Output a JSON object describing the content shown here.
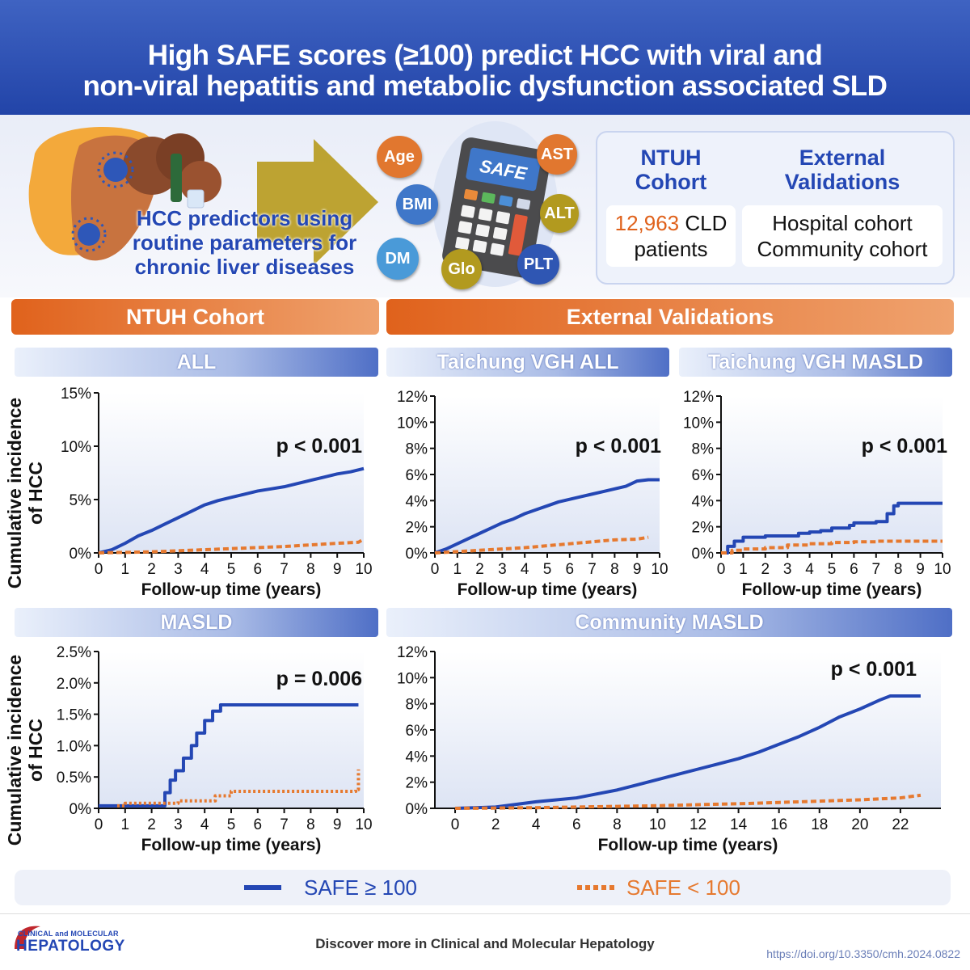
{
  "header": {
    "title_line1": "High SAFE scores (≥100) predict HCC with viral and",
    "title_line2": "non-viral hepatitis and metabolic dysfunction associated SLD"
  },
  "intro": {
    "predictor_text_line1": "HCC predictors using",
    "predictor_text_line2": "routine parameters for",
    "predictor_text_line3": "chronic liver diseases",
    "calculator_label": "SAFE",
    "parameters": [
      "Age",
      "AST",
      "BMI",
      "ALT",
      "DM",
      "Glo",
      "PLT"
    ]
  },
  "cohort_box": {
    "ntuh_line1": "NTUH",
    "ntuh_line2": "Cohort",
    "ntuh_count": "12,963",
    "ntuh_count_suffix": " CLD",
    "ntuh_count_line2": "patients",
    "ext_line1": "External",
    "ext_line2": "Validations",
    "ext_item1": "Hospital cohort",
    "ext_item2": "Community cohort"
  },
  "section_headers": {
    "ntuh": "NTUH Cohort",
    "external": "External Validations"
  },
  "common": {
    "y_axis_label_line1": "Cumulative incidence",
    "y_axis_label_line2": "of HCC"
  },
  "colors": {
    "high": "#2447b4",
    "low": "#e6792f",
    "accent_orange": "#e0621c"
  },
  "chart_data": [
    {
      "id": "ntuh-all",
      "type": "line",
      "title": "ALL",
      "xlabel": "Follow-up time (years)",
      "ylabel": "Cumulative incidence of HCC",
      "xlim": [
        0,
        10
      ],
      "ylim": [
        0,
        15
      ],
      "xticks": [
        0,
        1,
        2,
        3,
        4,
        5,
        6,
        7,
        8,
        9,
        10
      ],
      "yticks": [
        0,
        5,
        10,
        15
      ],
      "ytick_labels": [
        "0%",
        "5%",
        "10%",
        "15%"
      ],
      "pvalue": "p < 0.001",
      "series": [
        {
          "name": "SAFE ≥ 100",
          "style": "solid",
          "x": [
            0,
            0.5,
            1,
            1.5,
            2,
            2.5,
            3,
            3.5,
            4,
            4.5,
            5,
            5.5,
            6,
            6.5,
            7,
            7.5,
            8,
            8.5,
            9,
            9.5,
            10
          ],
          "y": [
            0,
            0.3,
            0.9,
            1.6,
            2.1,
            2.7,
            3.3,
            3.9,
            4.5,
            4.9,
            5.2,
            5.5,
            5.8,
            6.0,
            6.2,
            6.5,
            6.8,
            7.1,
            7.4,
            7.6,
            7.9
          ]
        },
        {
          "name": "SAFE < 100",
          "style": "dashed",
          "x": [
            0,
            1,
            2,
            3,
            4,
            5,
            6,
            7,
            8,
            9,
            9.8,
            10
          ],
          "y": [
            0,
            0.05,
            0.1,
            0.2,
            0.3,
            0.4,
            0.5,
            0.6,
            0.75,
            0.9,
            1.0,
            1.3
          ]
        }
      ]
    },
    {
      "id": "tvgh-all",
      "type": "line",
      "title": "Taichung VGH ALL",
      "xlabel": "Follow-up time (years)",
      "xlim": [
        0,
        10
      ],
      "ylim": [
        0,
        12
      ],
      "xticks": [
        0,
        1,
        2,
        3,
        4,
        5,
        6,
        7,
        8,
        9,
        10
      ],
      "yticks": [
        0,
        2,
        4,
        6,
        8,
        10,
        12
      ],
      "ytick_labels": [
        "0%",
        "2%",
        "4%",
        "6%",
        "8%",
        "10%",
        "12%"
      ],
      "pvalue": "p < 0.001",
      "series": [
        {
          "name": "SAFE ≥ 100",
          "style": "solid",
          "x": [
            0,
            0.5,
            1,
            1.5,
            2,
            2.5,
            3,
            3.5,
            4,
            4.5,
            5,
            5.5,
            6,
            6.5,
            7,
            7.5,
            8,
            8.5,
            9,
            9.5,
            10
          ],
          "y": [
            0,
            0.3,
            0.7,
            1.1,
            1.5,
            1.9,
            2.3,
            2.6,
            3.0,
            3.3,
            3.6,
            3.9,
            4.1,
            4.3,
            4.5,
            4.7,
            4.9,
            5.1,
            5.5,
            5.6,
            5.6
          ]
        },
        {
          "name": "SAFE < 100",
          "style": "dashed",
          "x": [
            0,
            1,
            2,
            3,
            4,
            5,
            6,
            7,
            8,
            9,
            9.5
          ],
          "y": [
            0,
            0.1,
            0.2,
            0.3,
            0.4,
            0.55,
            0.7,
            0.85,
            1.0,
            1.05,
            1.2
          ]
        }
      ]
    },
    {
      "id": "tvgh-masld",
      "type": "line",
      "title": "Taichung VGH MASLD",
      "xlabel": "Follow-up time (years)",
      "xlim": [
        0,
        10
      ],
      "ylim": [
        0,
        12
      ],
      "xticks": [
        0,
        1,
        2,
        3,
        4,
        5,
        6,
        7,
        8,
        9,
        10
      ],
      "yticks": [
        0,
        2,
        4,
        6,
        8,
        10,
        12
      ],
      "ytick_labels": [
        "0%",
        "2%",
        "4%",
        "6%",
        "8%",
        "10%",
        "12%"
      ],
      "pvalue": "p < 0.001",
      "series": [
        {
          "name": "SAFE ≥ 100",
          "style": "solid",
          "x": [
            0,
            0.3,
            0.6,
            1,
            2,
            3,
            3.5,
            4,
            4.5,
            5,
            5.8,
            6,
            6.5,
            7,
            7.5,
            7.8,
            8,
            9,
            10
          ],
          "y": [
            0,
            0.5,
            0.9,
            1.2,
            1.3,
            1.3,
            1.5,
            1.6,
            1.7,
            1.9,
            2.1,
            2.3,
            2.3,
            2.4,
            3.0,
            3.6,
            3.8,
            3.8,
            3.8
          ]
        },
        {
          "name": "SAFE < 100",
          "style": "dashed",
          "x": [
            0,
            0.5,
            1,
            2,
            3,
            4,
            5,
            6,
            7,
            8,
            9,
            10
          ],
          "y": [
            0,
            0.2,
            0.3,
            0.4,
            0.6,
            0.7,
            0.8,
            0.85,
            0.9,
            0.9,
            0.9,
            0.9
          ]
        }
      ]
    },
    {
      "id": "ntuh-masld",
      "type": "line",
      "title": "MASLD",
      "xlabel": "Follow-up time (years)",
      "ylabel": "Cumulative incidence of HCC",
      "xlim": [
        0,
        10
      ],
      "ylim": [
        0,
        2.5
      ],
      "xticks": [
        0,
        1,
        2,
        3,
        4,
        5,
        6,
        7,
        8,
        9,
        10
      ],
      "yticks": [
        0,
        0.5,
        1.0,
        1.5,
        2.0,
        2.5
      ],
      "ytick_labels": [
        "0%",
        "0.5%",
        "1.0%",
        "1.5%",
        "2.0%",
        "2.5%"
      ],
      "pvalue": "p = 0.006",
      "series": [
        {
          "name": "SAFE ≥ 100",
          "style": "solid",
          "x": [
            0,
            2.4,
            2.5,
            2.7,
            2.9,
            3.2,
            3.5,
            3.7,
            4.0,
            4.3,
            4.6,
            9.8
          ],
          "y": [
            0.04,
            0.04,
            0.25,
            0.45,
            0.6,
            0.8,
            1.0,
            1.2,
            1.4,
            1.55,
            1.65,
            1.65
          ]
        },
        {
          "name": "SAFE < 100",
          "style": "dotted",
          "x": [
            0.7,
            1,
            2.5,
            3,
            4,
            4.4,
            4.8,
            5,
            6,
            7,
            8,
            9,
            9.7,
            9.8,
            9.8
          ],
          "y": [
            0.04,
            0.08,
            0.08,
            0.12,
            0.12,
            0.2,
            0.2,
            0.27,
            0.27,
            0.27,
            0.27,
            0.27,
            0.3,
            0.4,
            0.62
          ]
        }
      ]
    },
    {
      "id": "community-masld",
      "type": "line",
      "title": "Community MASLD",
      "xlabel": "Follow-up time (years)",
      "xlim": [
        -1,
        24
      ],
      "ylim": [
        0,
        12
      ],
      "xticks": [
        0,
        2,
        4,
        6,
        8,
        10,
        12,
        14,
        16,
        18,
        20,
        22
      ],
      "yticks": [
        0,
        2,
        4,
        6,
        8,
        10,
        12
      ],
      "ytick_labels": [
        "0%",
        "2%",
        "4%",
        "6%",
        "8%",
        "10%",
        "12%"
      ],
      "pvalue": "p < 0.001",
      "series": [
        {
          "name": "SAFE ≥ 100",
          "style": "solid",
          "x": [
            0,
            1,
            2,
            3,
            4,
            5,
            6,
            7,
            8,
            9,
            10,
            11,
            12,
            13,
            14,
            15,
            16,
            17,
            18,
            19,
            20,
            21,
            21.5,
            22,
            23
          ],
          "y": [
            0,
            0.05,
            0.1,
            0.3,
            0.5,
            0.65,
            0.8,
            1.1,
            1.4,
            1.8,
            2.2,
            2.6,
            3.0,
            3.4,
            3.8,
            4.3,
            4.9,
            5.5,
            6.2,
            7.0,
            7.6,
            8.3,
            8.6,
            8.6,
            8.6
          ]
        },
        {
          "name": "SAFE < 100",
          "style": "dashed",
          "x": [
            0,
            2,
            4,
            6,
            8,
            10,
            12,
            14,
            16,
            18,
            20,
            22,
            23
          ],
          "y": [
            0,
            0.02,
            0.05,
            0.1,
            0.15,
            0.2,
            0.28,
            0.35,
            0.45,
            0.55,
            0.65,
            0.8,
            1.0
          ]
        }
      ]
    }
  ],
  "legend": {
    "high_label": "SAFE ≥ 100",
    "low_label": "SAFE < 100"
  },
  "footer": {
    "journal_line1": "CLINICAL and MOLECULAR",
    "journal_line2": "HEPATOLOGY",
    "tagline": "Discover more in Clinical and Molecular Hepatology",
    "doi": "https://doi.org/10.3350/cmh.2024.0822"
  }
}
